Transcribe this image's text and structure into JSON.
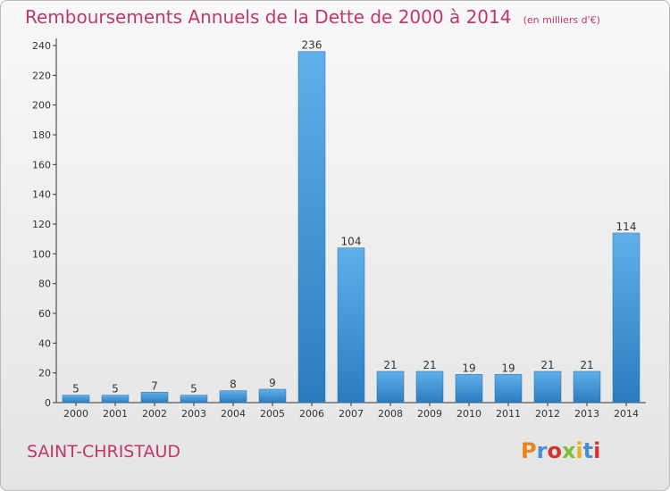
{
  "chart_data": {
    "type": "bar",
    "title": "Remboursements Annuels de la Dette de 2000 à 2014",
    "unit": "(en milliers d'€)",
    "categories": [
      "2000",
      "2001",
      "2002",
      "2003",
      "2004",
      "2005",
      "2006",
      "2007",
      "2008",
      "2009",
      "2010",
      "2011",
      "2012",
      "2013",
      "2014"
    ],
    "values": [
      5,
      5,
      7,
      5,
      8,
      9,
      236,
      104,
      21,
      21,
      19,
      19,
      21,
      21,
      114
    ],
    "ylim": [
      0,
      240
    ],
    "yticks": [
      0,
      20,
      40,
      60,
      80,
      100,
      120,
      140,
      160,
      180,
      200,
      220,
      240
    ],
    "grid": false,
    "bar_color": "#3d8fd1"
  },
  "footer": {
    "town": "SAINT-CHRISTAUD",
    "brand": "Proxiti"
  },
  "colors": {
    "title": "#c0386a",
    "axis": "#333333"
  }
}
